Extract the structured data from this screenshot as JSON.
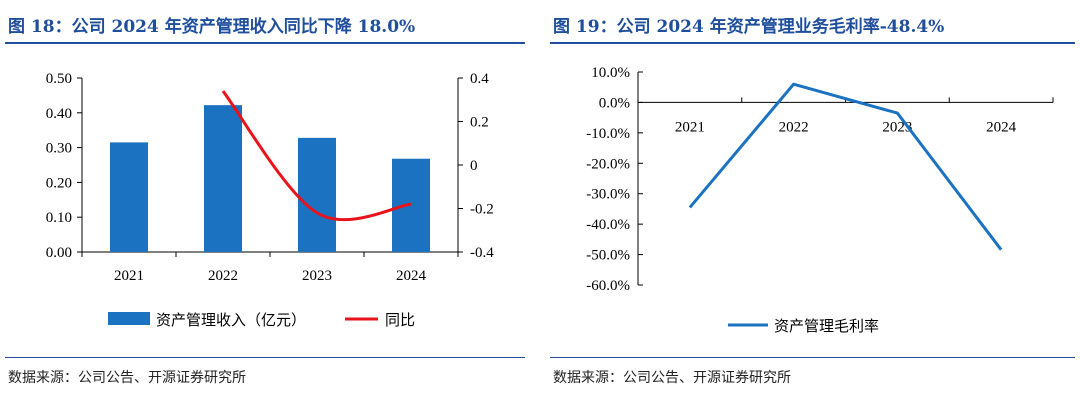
{
  "left": {
    "title": "图 18：公司 2024 年资产管理收入同比下降 18.0%",
    "source": "数据来源：公司公告、开源证券研究所",
    "colors": {
      "bar": "#1b72c0",
      "line": "#e8131b",
      "title": "#1f4e9c"
    }
  },
  "right": {
    "title": "图 19：公司 2024 年资产管理业务毛利率-48.4%",
    "source": "数据来源：公司公告、开源证券研究所",
    "colors": {
      "line": "#1b72c0",
      "title": "#1f4e9c"
    }
  },
  "chart_data": [
    {
      "type": "bar",
      "categories": [
        "2021",
        "2022",
        "2023",
        "2024"
      ],
      "series": [
        {
          "name": "资产管理收入（亿元）",
          "type": "bar",
          "axis": "left",
          "values": [
            0.315,
            0.422,
            0.328,
            0.268
          ]
        },
        {
          "name": "同比",
          "type": "line",
          "axis": "right",
          "values": [
            null,
            0.34,
            -0.22,
            -0.18
          ]
        }
      ],
      "ylim": [
        0,
        0.5
      ],
      "yticks": [
        "0.00",
        "0.10",
        "0.20",
        "0.30",
        "0.40",
        "0.50"
      ],
      "y2lim": [
        -0.4,
        0.4
      ],
      "y2ticks": [
        "-0.4",
        "-0.2",
        "0",
        "0.2",
        "0.4"
      ],
      "legend": "bottom",
      "grid": false
    },
    {
      "type": "line",
      "categories": [
        "2021",
        "2022",
        "2023",
        "2024"
      ],
      "series": [
        {
          "name": "资产管理毛利率",
          "values": [
            -34.5,
            6.0,
            -3.5,
            -48.4
          ]
        }
      ],
      "ylim": [
        -60,
        10
      ],
      "yticks": [
        "10.0%",
        "0.0%",
        "-10.0%",
        "-20.0%",
        "-30.0%",
        "-40.0%",
        "-50.0%",
        "-60.0%"
      ],
      "legend": "bottom",
      "grid": false
    }
  ]
}
